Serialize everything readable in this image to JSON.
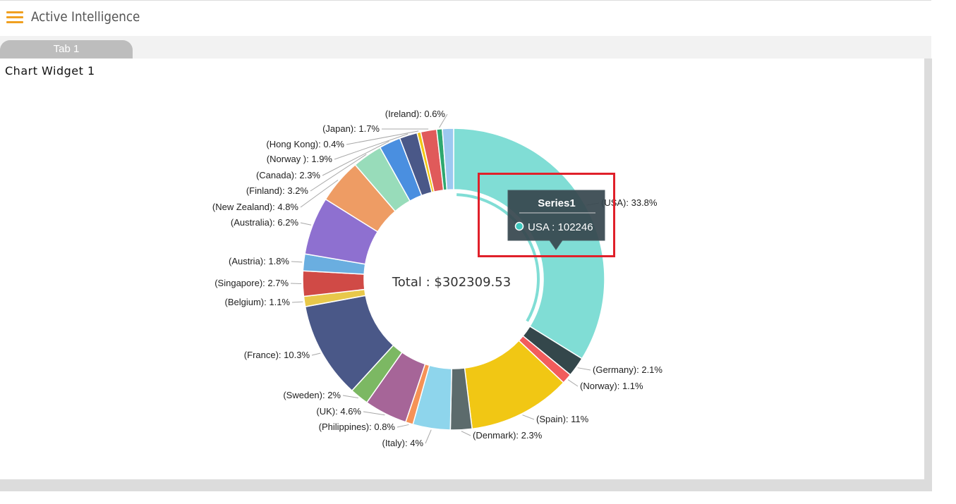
{
  "app": {
    "title": "Active Intelligence"
  },
  "tabs": [
    {
      "label": "Tab 1"
    }
  ],
  "widget": {
    "title": "Chart Widget 1"
  },
  "icons": {
    "menu": "hamburger-menu-icon"
  },
  "colors": {
    "menu_icon": "#f0a020",
    "tooltip_bg": "#37474f",
    "highlight_border": "#e0202a"
  },
  "chart_data": {
    "type": "pie",
    "variant": "donut",
    "center_label": "Total : $302309.53",
    "tooltip": {
      "series": "Series1",
      "text": "USA : 102246"
    },
    "slices": [
      {
        "label": "(USA): 33.8%",
        "name": "USA",
        "percent": 33.8,
        "value": 102246,
        "color": "#80ddd5"
      },
      {
        "label": "(Germany): 2.1%",
        "name": "Germany",
        "percent": 2.1,
        "color": "#34474b"
      },
      {
        "label": "(Norway): 1.1%",
        "name": "Norway",
        "percent": 1.1,
        "color": "#f25c5c"
      },
      {
        "label": "(Spain): 11%",
        "name": "Spain",
        "percent": 11.0,
        "color": "#f1c714"
      },
      {
        "label": "(Denmark): 2.3%",
        "name": "Denmark",
        "percent": 2.3,
        "color": "#5c6b6c"
      },
      {
        "label": "(Italy): 4%",
        "name": "Italy",
        "percent": 4.0,
        "color": "#8ed5ec"
      },
      {
        "label": "(Philippines): 0.8%",
        "name": "Philippines",
        "percent": 0.8,
        "color": "#f69256"
      },
      {
        "label": "(UK): 4.6%",
        "name": "UK",
        "percent": 4.6,
        "color": "#a66598"
      },
      {
        "label": "(Sweden): 2%",
        "name": "Sweden",
        "percent": 2.0,
        "color": "#7cb863"
      },
      {
        "label": "(France): 10.3%",
        "name": "France",
        "percent": 10.3,
        "color": "#4a5888"
      },
      {
        "label": "(Belgium): 1.1%",
        "name": "Belgium",
        "percent": 1.1,
        "color": "#e8c84a"
      },
      {
        "label": "(Singapore): 2.7%",
        "name": "Singapore",
        "percent": 2.7,
        "color": "#d04a46"
      },
      {
        "label": "(Austria): 1.8%",
        "name": "Austria",
        "percent": 1.8,
        "color": "#6aaee0"
      },
      {
        "label": "(Australia): 6.2%",
        "name": "Australia",
        "percent": 6.2,
        "color": "#8e70d0"
      },
      {
        "label": "(New Zealand): 4.8%",
        "name": "New Zealand",
        "percent": 4.8,
        "color": "#ee9c64"
      },
      {
        "label": "(Finland): 3.2%",
        "name": "Finland",
        "percent": 3.2,
        "color": "#98dcba"
      },
      {
        "label": "(Canada): 2.3%",
        "name": "Canada",
        "percent": 2.3,
        "color": "#4a8fe0"
      },
      {
        "label": "(Norway ): 1.9%",
        "name": "Norway ",
        "percent": 1.9,
        "color": "#4a5888"
      },
      {
        "label": "(Hong Kong): 0.4%",
        "name": "Hong Kong",
        "percent": 0.4,
        "color": "#f1c714"
      },
      {
        "label": "(Japan): 1.7%",
        "name": "Japan",
        "percent": 1.7,
        "color": "#e05a5a"
      },
      {
        "label": "(Ireland): 0.6%",
        "name": "Ireland",
        "percent": 0.6,
        "color": "#2ea870"
      },
      {
        "label": "",
        "name": "",
        "percent": 1.2,
        "color": "#9cc8f0"
      }
    ]
  }
}
